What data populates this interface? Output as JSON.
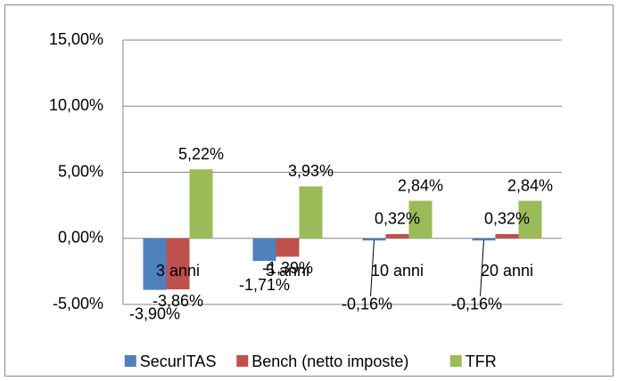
{
  "chart_data": {
    "type": "bar",
    "categories": [
      "3 anni",
      "5 anni",
      "10 anni",
      "20 anni"
    ],
    "series": [
      {
        "name": "SecurITAS",
        "color": "#4f81bd",
        "values": [
          -3.9,
          -1.71,
          -0.16,
          -0.16
        ],
        "value_labels": [
          "-3,90%",
          "-1,71%",
          "-0,16%",
          "-0,16%"
        ]
      },
      {
        "name": "Bench (netto imposte)",
        "color": "#c0504d",
        "values": [
          -3.86,
          -1.39,
          0.32,
          0.32
        ],
        "value_labels": [
          "-3,86%",
          "-1,39%",
          "0,32%",
          "0,32%"
        ]
      },
      {
        "name": "TFR",
        "color": "#9bbb59",
        "values": [
          5.22,
          3.93,
          2.84,
          2.84
        ],
        "value_labels": [
          "5,22%",
          "3,93%",
          "2,84%",
          "2,84%"
        ]
      }
    ],
    "ylim": [
      -5,
      15
    ],
    "yticks": [
      {
        "value": -5,
        "label": "-5,00%"
      },
      {
        "value": 0,
        "label": "0,00%"
      },
      {
        "value": 5,
        "label": "5,00%"
      },
      {
        "value": 10,
        "label": "10,00%"
      },
      {
        "value": 15,
        "label": "15,00%"
      }
    ],
    "grid": true,
    "legend": "bottom"
  }
}
